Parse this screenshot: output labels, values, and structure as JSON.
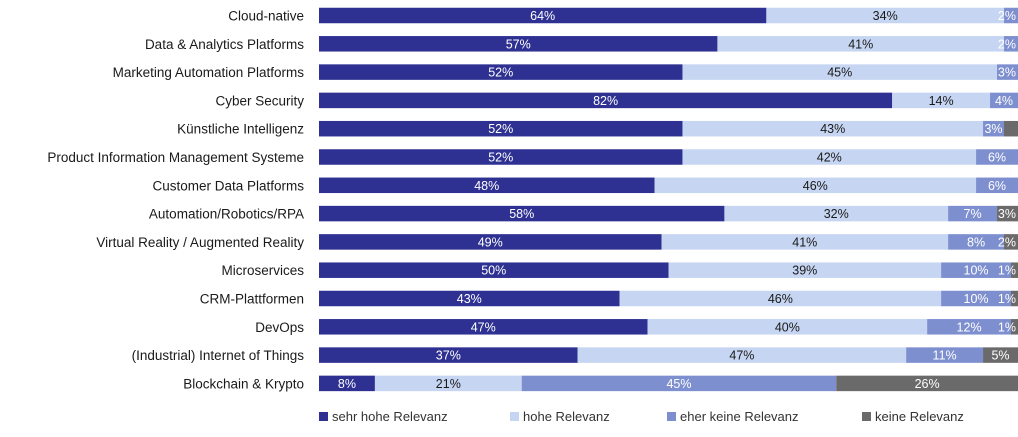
{
  "chart_data": {
    "type": "bar",
    "orientation": "horizontal",
    "stacked": true,
    "normalized_percent": true,
    "categories": [
      "Cloud-native",
      "Data & Analytics Platforms",
      "Marketing Automation Platforms",
      "Cyber Security",
      "Künstliche Intelligenz",
      "Product Information Management Systeme",
      "Customer Data Platforms",
      "Automation/Robotics/RPA",
      "Virtual Reality / Augmented Reality",
      "Microservices",
      "CRM-Plattformen",
      "DevOps",
      "(Industrial) Internet of Things",
      "Blockchain & Krypto"
    ],
    "series": [
      {
        "name": "sehr hohe Relevanz",
        "color": "#2e3192",
        "label_color": "#ffffff",
        "values": [
          64,
          57,
          52,
          82,
          52,
          52,
          48,
          58,
          49,
          50,
          43,
          47,
          37,
          8
        ]
      },
      {
        "name": "hohe Relevanz",
        "color": "#c6d5f1",
        "label_color": "#1a1a1a",
        "values": [
          34,
          41,
          45,
          14,
          43,
          42,
          46,
          32,
          41,
          39,
          46,
          40,
          47,
          21
        ]
      },
      {
        "name": "eher keine Relevanz",
        "color": "#7e8fd0",
        "label_color": "#ffffff",
        "values": [
          2,
          2,
          3,
          4,
          3,
          6,
          6,
          7,
          8,
          10,
          10,
          12,
          11,
          45
        ]
      },
      {
        "name": "keine Relevanz",
        "color": "#6a6a6a",
        "label_color": "#ffffff",
        "values": [
          0,
          0,
          0,
          0,
          2,
          0,
          0,
          3,
          2,
          1,
          1,
          1,
          5,
          26
        ]
      }
    ],
    "xlim": [
      0,
      100
    ],
    "grid": false,
    "legend_position": "bottom"
  }
}
